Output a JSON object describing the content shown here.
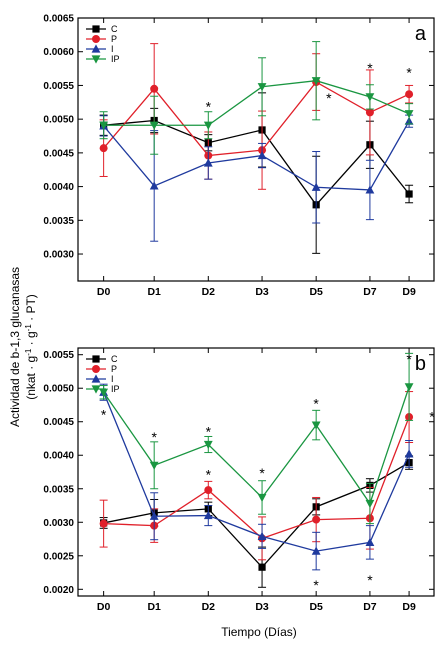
{
  "chart_data": [
    {
      "type": "line",
      "panel_label": "a",
      "categories": [
        "D0",
        "D1",
        "D2",
        "D3",
        "D5",
        "D7",
        "D9"
      ],
      "ylim": [
        0.0026,
        0.0065
      ],
      "yticks": [
        "0.0030",
        "0.0035",
        "0.0040",
        "0.0045",
        "0.0050",
        "0.0055",
        "0.0060",
        "0.0065"
      ],
      "legend_position": "top-left",
      "series": [
        {
          "name": "C",
          "color": "#000000",
          "marker": "square",
          "values": [
            0.00491,
            0.00498,
            0.00465,
            0.00484,
            0.00373,
            0.00462,
            0.00389
          ],
          "errors": [
            0.00015,
            0.00018,
            0.00012,
            0.00055,
            0.00072,
            0.00035,
            0.00013
          ]
        },
        {
          "name": "P",
          "color": "#e0202a",
          "marker": "circle",
          "values": [
            0.00457,
            0.00545,
            0.00446,
            0.00454,
            0.00555,
            0.0051,
            0.00537
          ],
          "errors": [
            0.00042,
            0.00067,
            0.00035,
            0.00058,
            0.00042,
            0.00063,
            0.00013
          ]
        },
        {
          "name": "I",
          "color": "#1f3a9e",
          "marker": "triangle-up",
          "values": [
            0.0049,
            0.00401,
            0.00435,
            0.00446,
            0.00399,
            0.00395,
            0.00497
          ],
          "errors": [
            0.00015,
            0.00082,
            0.00024,
            0.00018,
            0.00053,
            0.00044,
            9e-05
          ]
        },
        {
          "name": "IP",
          "color": "#1a9641",
          "marker": "triangle-down",
          "values": [
            0.00491,
            0.00491,
            0.00491,
            0.00548,
            0.00557,
            0.00533,
            0.00508
          ],
          "errors": [
            0.0002,
            0.00043,
            0.0002,
            0.00043,
            0.00058,
            0.00018,
            0.00015
          ]
        }
      ],
      "significance_marks": [
        {
          "category": "D2",
          "value": 0.00523,
          "text": "*"
        },
        {
          "category": "D5",
          "value": 0.00536,
          "text": "*",
          "offset": 0.25
        },
        {
          "category": "D7",
          "value": 0.0058,
          "text": "*"
        },
        {
          "category": "D9",
          "value": 0.00574,
          "text": "*"
        }
      ]
    },
    {
      "type": "line",
      "panel_label": "b",
      "categories": [
        "D0",
        "D1",
        "D2",
        "D3",
        "D5",
        "D7",
        "D9"
      ],
      "ylim": [
        0.0019,
        0.0056
      ],
      "yticks": [
        "0.0020",
        "0.0025",
        "0.0030",
        "0.0035",
        "0.0040",
        "0.0045",
        "0.0050",
        "0.0055"
      ],
      "legend_position": "top-left",
      "series": [
        {
          "name": "C",
          "color": "#000000",
          "marker": "square",
          "values": [
            0.00299,
            0.00314,
            0.0032,
            0.00233,
            0.00323,
            0.00355,
            0.00389
          ],
          "errors": [
            8e-05,
            0.0002,
            0.0001,
            0.0003,
            0.00012,
            0.0001,
            0.0001
          ]
        },
        {
          "name": "P",
          "color": "#e0202a",
          "marker": "circle",
          "values": [
            0.00298,
            0.00295,
            0.00348,
            0.00276,
            0.00304,
            0.00306,
            0.00457
          ],
          "errors": [
            0.00035,
            0.00025,
            0.00013,
            0.00032,
            0.00033,
            0.00046,
            0.00038
          ]
        },
        {
          "name": "I",
          "color": "#1f3a9e",
          "marker": "triangle-up",
          "values": [
            0.00494,
            0.00309,
            0.0031,
            0.00279,
            0.00257,
            0.0027,
            0.00402
          ],
          "errors": [
            0.00012,
            0.00035,
            0.00015,
            0.00018,
            0.00028,
            0.00025,
            0.0002
          ]
        },
        {
          "name": "IP",
          "color": "#1a9641",
          "marker": "triangle-down",
          "values": [
            0.00494,
            0.00385,
            0.00416,
            0.00337,
            0.00445,
            0.00328,
            0.00502
          ],
          "errors": [
            0.0001,
            0.00035,
            0.00012,
            0.00025,
            0.00022,
            0.0003,
            0.0005
          ]
        }
      ],
      "significance_marks": [
        {
          "category": "D0",
          "value": 0.00465,
          "text": "*"
        },
        {
          "category": "D1",
          "value": 0.00432,
          "text": "*"
        },
        {
          "category": "D2",
          "value": 0.0044,
          "text": "*"
        },
        {
          "category": "D2",
          "value": 0.00376,
          "text": "*"
        },
        {
          "category": "D3",
          "value": 0.00378,
          "text": "*"
        },
        {
          "category": "D5",
          "value": 0.00482,
          "text": "*"
        },
        {
          "category": "D5",
          "value": 0.00211,
          "text": "*"
        },
        {
          "category": "D7",
          "value": 0.00218,
          "text": "*"
        },
        {
          "category": "D9",
          "value": 0.00548,
          "text": "*"
        },
        {
          "category": "D9",
          "value": 0.00462,
          "text": "*",
          "offset": 0.45
        }
      ]
    }
  ],
  "axes": {
    "ylabel_line1": "Actividad de b-1,3 glucanasas",
    "ylabel_line2_pre": "(nkat · g",
    "ylabel_sup1": "-1",
    "ylabel_mid": " · g",
    "ylabel_sup2": "-1",
    "ylabel_post": " · PT)",
    "xlabel": "Tiempo (Días)"
  }
}
